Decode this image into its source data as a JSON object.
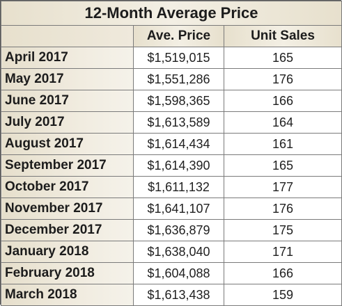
{
  "chart_data": {
    "type": "table",
    "title": "12-Month Average Price",
    "columns": [
      "",
      "Ave. Price",
      "Unit Sales"
    ],
    "rows": [
      {
        "month": "April 2017",
        "price": "$1,519,015",
        "units": "165"
      },
      {
        "month": "May 2017",
        "price": "$1,551,286",
        "units": "176"
      },
      {
        "month": "June 2017",
        "price": "$1,598,365",
        "units": "166"
      },
      {
        "month": "July 2017",
        "price": "$1,613,589",
        "units": "164"
      },
      {
        "month": "August 2017",
        "price": "$1,614,434",
        "units": "161"
      },
      {
        "month": "September 2017",
        "price": "$1,614,390",
        "units": "165"
      },
      {
        "month": "October 2017",
        "price": "$1,611,132",
        "units": "177"
      },
      {
        "month": "November 2017",
        "price": "$1,641,107",
        "units": "176"
      },
      {
        "month": "December 2017",
        "price": "$1,636,879",
        "units": "175"
      },
      {
        "month": "January 2018",
        "price": "$1,638,040",
        "units": "171"
      },
      {
        "month": "February 2018",
        "price": "$1,604,088",
        "units": "166"
      },
      {
        "month": "March 2018",
        "price": "$1,613,438",
        "units": "159"
      }
    ]
  },
  "colors": {
    "header_background": "#ece6d6",
    "border": "#7a7a7a",
    "text": "#1c1c1c"
  }
}
